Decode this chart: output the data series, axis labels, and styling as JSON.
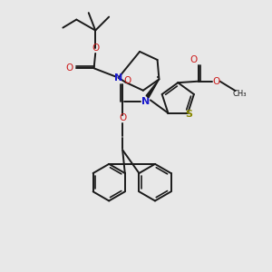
{
  "bg_color": "#e8e8e8",
  "bond_color": "#1a1a1a",
  "N_color": "#1a1acc",
  "O_color": "#cc1a1a",
  "S_color": "#888800",
  "lw": 1.4,
  "xlim": [
    0,
    10
  ],
  "ylim": [
    0,
    10
  ]
}
